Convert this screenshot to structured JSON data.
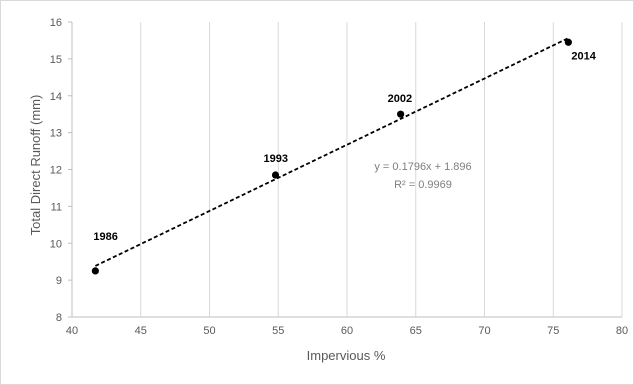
{
  "chart_data": {
    "type": "scatter",
    "xlabel": "Impervious  %",
    "ylabel": "Total Direct Runoff (mm)",
    "xlim": [
      40,
      80
    ],
    "ylim": [
      8,
      16
    ],
    "xticks": [
      40,
      45,
      50,
      55,
      60,
      65,
      70,
      75,
      80
    ],
    "yticks": [
      8,
      9,
      10,
      11,
      12,
      13,
      14,
      15,
      16
    ],
    "grid": "vertical",
    "points": [
      {
        "label": "1986",
        "x": 41.7,
        "y": 9.25
      },
      {
        "label": "1993",
        "x": 54.8,
        "y": 11.85
      },
      {
        "label": "2002",
        "x": 63.9,
        "y": 13.5
      },
      {
        "label": "2014",
        "x": 76.1,
        "y": 15.45
      }
    ],
    "trendline": {
      "type": "linear",
      "slope": 0.1796,
      "intercept": 1.896,
      "x_range": [
        41.7,
        76.1
      ],
      "style": "dashed",
      "equation_text": "y = 0.1796x + 1.896",
      "r2_text": "R² = 0.9969"
    },
    "colors": {
      "points": "#000000",
      "trendline": "#000000",
      "grid": "#d9d9d9",
      "axis": "#bfbfbf"
    }
  }
}
